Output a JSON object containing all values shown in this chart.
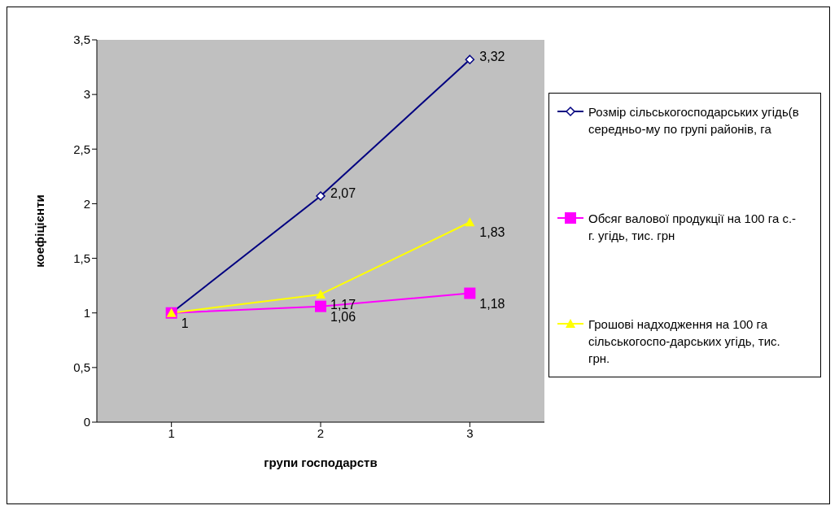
{
  "chart_data": {
    "type": "line",
    "xlabel": "групи господарств",
    "ylabel": "коефіцієнти",
    "categories": [
      "1",
      "2",
      "3"
    ],
    "series": [
      {
        "name": "Розмір сільськогосподарських угідь(в середньо-му по групі районів, га",
        "color": "#000080",
        "marker": "diamond",
        "values": [
          1,
          2.07,
          3.32
        ],
        "value_labels": [
          "1",
          "2,07",
          "3,32"
        ]
      },
      {
        "name": "Обсяг валової продукції на 100 га с.-г. угідь, тис. грн",
        "color": "#ff00ff",
        "marker": "square",
        "values": [
          1,
          1.06,
          1.18
        ],
        "value_labels": [
          null,
          "1,06",
          "1,18"
        ]
      },
      {
        "name": "Грошові надходження на 100 га сільськогоспо-дарських угідь, тис. грн.",
        "color": "#ffff00",
        "marker": "triangle",
        "values": [
          1,
          1.17,
          1.83
        ],
        "value_labels": [
          null,
          "1,17",
          "1,83"
        ]
      }
    ],
    "ylim": [
      0,
      3.5
    ],
    "yticks": [
      0,
      {
        "value": 0.5,
        "label": "0,5"
      },
      1,
      {
        "value": 1.5,
        "label": "1,5"
      },
      2,
      {
        "value": 2.5,
        "label": "2,5"
      },
      3,
      {
        "value": 3.5,
        "label": "3,5"
      }
    ],
    "grid": false,
    "legend": "right",
    "line_style": "solid"
  }
}
